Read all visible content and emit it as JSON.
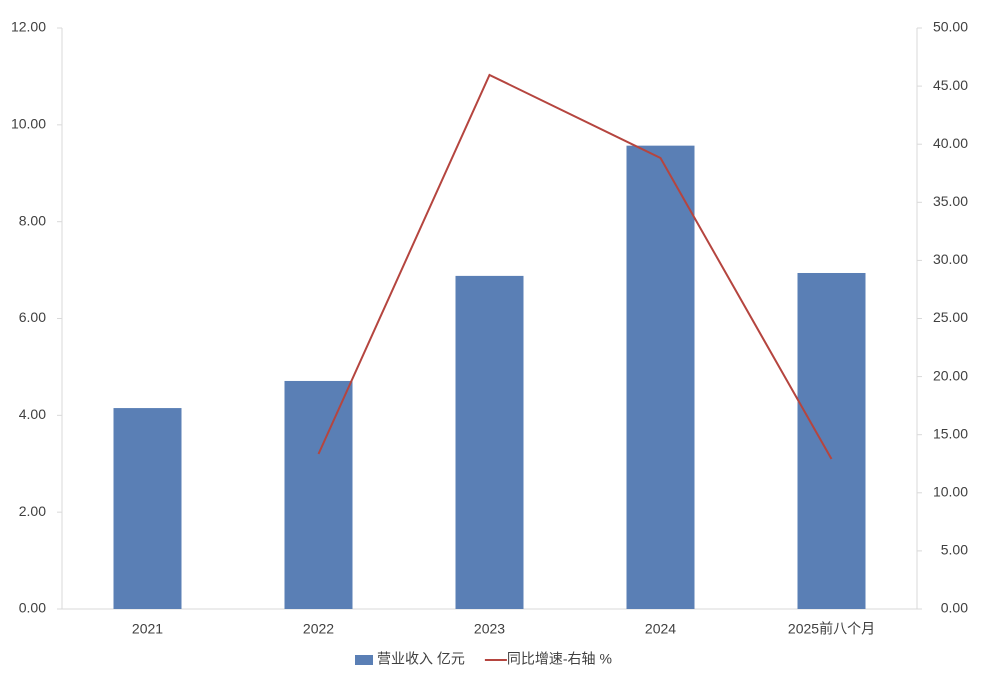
{
  "chart_data": {
    "type": "bar",
    "categories": [
      "2021",
      "2022",
      "2023",
      "2024",
      "2025前八个月"
    ],
    "series": [
      {
        "name": "营业收入 亿元",
        "color": "#5a7fb5",
        "values": [
          4.15,
          4.71,
          6.88,
          9.57,
          6.94
        ]
      },
      {
        "name": "同比增速-右轴 %",
        "color": "#b5453f",
        "type": "line",
        "axis": "y2",
        "values": [
          null,
          13.34,
          45.96,
          38.81,
          12.91
        ]
      }
    ],
    "ylim": [
      0,
      12
    ],
    "yticks": [
      {
        "value": 0,
        "label": "0.00"
      },
      {
        "value": 2,
        "label": "2.00"
      },
      {
        "value": 4,
        "label": "4.00"
      },
      {
        "value": 6,
        "label": "6.00"
      },
      {
        "value": 8,
        "label": "8.00"
      },
      {
        "value": 10,
        "label": "10.00"
      },
      {
        "value": 12,
        "label": "12.00"
      }
    ],
    "y2lim": [
      0,
      50
    ],
    "y2ticks": [
      {
        "value": 0,
        "label": "0.00"
      },
      {
        "value": 5,
        "label": "5.00"
      },
      {
        "value": 10,
        "label": "10.00"
      },
      {
        "value": 15,
        "label": "15.00"
      },
      {
        "value": 20,
        "label": "20.00"
      },
      {
        "value": 25,
        "label": "25.00"
      },
      {
        "value": 30,
        "label": "30.00"
      },
      {
        "value": 35,
        "label": "35.00"
      },
      {
        "value": 40,
        "label": "40.00"
      },
      {
        "value": 45,
        "label": "45.00"
      },
      {
        "value": 50,
        "label": "50.00"
      }
    ],
    "legend": "bottom"
  }
}
